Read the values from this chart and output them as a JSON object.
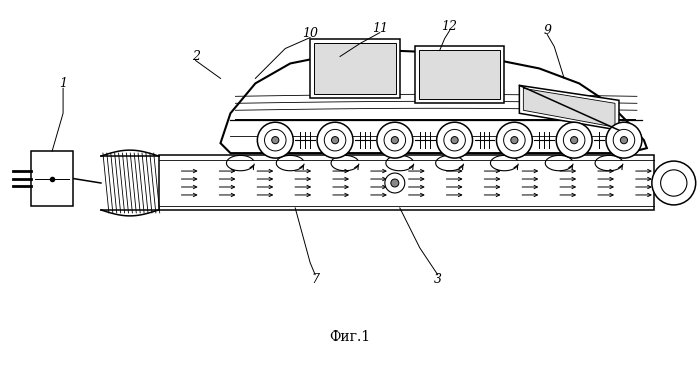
{
  "title": "Фиг.1",
  "bg_color": "#ffffff",
  "line_color": "#000000",
  "fig_width": 6.99,
  "fig_height": 3.68
}
